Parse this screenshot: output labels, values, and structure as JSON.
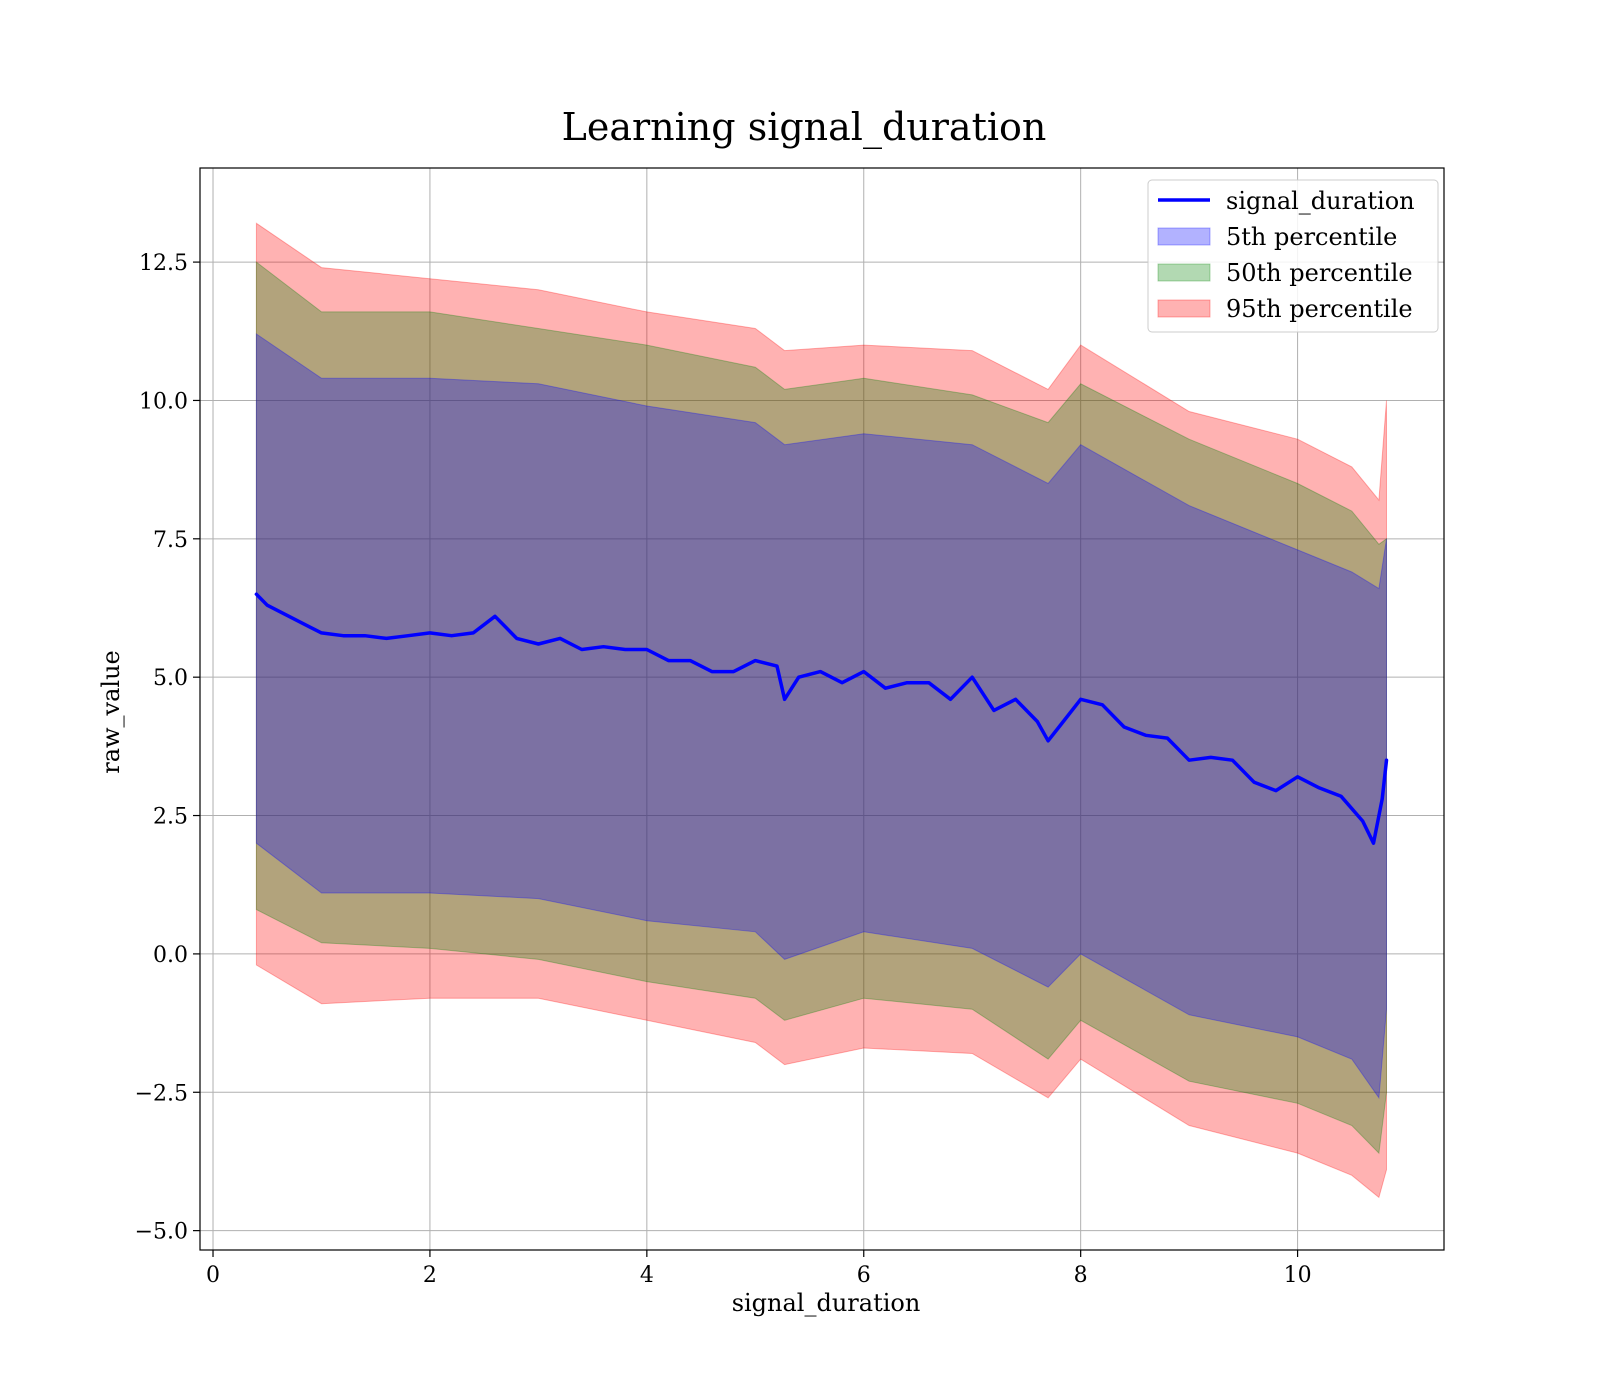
{
  "chart_data": {
    "type": "area",
    "title": "Learning signal_duration",
    "xlabel": "signal_duration",
    "ylabel": "raw_value",
    "xlim": [
      -0.12,
      11.35
    ],
    "ylim": [
      -5.35,
      14.2
    ],
    "grid": true,
    "legend_position": "top-right",
    "x_ticks": [
      0,
      2,
      4,
      6,
      8,
      10
    ],
    "x_tick_labels": [
      "0",
      "2",
      "4",
      "6",
      "8",
      "10"
    ],
    "y_ticks": [
      12.5,
      10.0,
      7.5,
      5.0,
      2.5,
      0.0,
      -2.5,
      -5.0
    ],
    "y_tick_labels": [
      "12.5",
      "10.0",
      "7.5",
      "5.0",
      "2.5",
      "0.0",
      "−2.5",
      "−5.0"
    ],
    "line": {
      "name": "signal_duration",
      "color": "#0000ff",
      "x": [
        0.4,
        0.5,
        0.7,
        0.9,
        1.0,
        1.2,
        1.4,
        1.6,
        1.8,
        2.0,
        2.2,
        2.4,
        2.6,
        2.8,
        3.0,
        3.2,
        3.4,
        3.6,
        3.8,
        4.0,
        4.2,
        4.4,
        4.6,
        4.8,
        5.0,
        5.2,
        5.27,
        5.4,
        5.6,
        5.8,
        6.0,
        6.2,
        6.4,
        6.6,
        6.8,
        7.0,
        7.2,
        7.4,
        7.6,
        7.7,
        7.8,
        8.0,
        8.2,
        8.4,
        8.6,
        8.8,
        9.0,
        9.2,
        9.4,
        9.6,
        9.8,
        10.0,
        10.2,
        10.4,
        10.6,
        10.7,
        10.78,
        10.82
      ],
      "y": [
        6.5,
        6.3,
        6.1,
        5.9,
        5.8,
        5.75,
        5.75,
        5.7,
        5.75,
        5.8,
        5.75,
        5.8,
        6.1,
        5.7,
        5.6,
        5.7,
        5.5,
        5.55,
        5.5,
        5.5,
        5.3,
        5.3,
        5.1,
        5.1,
        5.3,
        5.2,
        4.6,
        5.0,
        5.1,
        4.9,
        5.1,
        4.8,
        4.9,
        4.9,
        4.6,
        5.0,
        4.4,
        4.6,
        4.2,
        3.85,
        4.1,
        4.6,
        4.5,
        4.1,
        3.95,
        3.9,
        3.5,
        3.55,
        3.5,
        3.1,
        2.95,
        3.2,
        3.0,
        2.85,
        2.4,
        2.0,
        2.8,
        3.5
      ]
    },
    "bands": [
      {
        "name": "5th percentile",
        "color": "#0000ff",
        "x": [
          0.4,
          1.0,
          2.0,
          3.0,
          4.0,
          5.0,
          5.27,
          6.0,
          7.0,
          7.7,
          8.0,
          9.0,
          10.0,
          10.5,
          10.75,
          10.82
        ],
        "upper": [
          11.2,
          10.4,
          10.4,
          10.3,
          9.9,
          9.6,
          9.2,
          9.4,
          9.2,
          8.5,
          9.2,
          8.1,
          7.3,
          6.9,
          6.6,
          7.5
        ],
        "lower": [
          2.0,
          1.1,
          1.1,
          1.0,
          0.6,
          0.4,
          -0.1,
          0.4,
          0.1,
          -0.6,
          0.0,
          -1.1,
          -1.5,
          -1.9,
          -2.6,
          -1.0
        ]
      },
      {
        "name": "50th percentile",
        "color": "#008000",
        "x": [
          0.4,
          1.0,
          2.0,
          3.0,
          4.0,
          5.0,
          5.27,
          6.0,
          7.0,
          7.7,
          8.0,
          9.0,
          10.0,
          10.5,
          10.75,
          10.82
        ],
        "upper": [
          12.5,
          11.6,
          11.6,
          11.3,
          11.0,
          10.6,
          10.2,
          10.4,
          10.1,
          9.6,
          10.3,
          9.3,
          8.5,
          8.0,
          7.4,
          7.5
        ],
        "lower": [
          0.8,
          0.2,
          0.1,
          -0.1,
          -0.5,
          -0.8,
          -1.2,
          -0.8,
          -1.0,
          -1.9,
          -1.2,
          -2.3,
          -2.7,
          -3.1,
          -3.6,
          -2.5
        ]
      },
      {
        "name": "95th percentile",
        "color": "#ff0000",
        "x": [
          0.4,
          1.0,
          2.0,
          3.0,
          4.0,
          5.0,
          5.27,
          6.0,
          7.0,
          7.7,
          8.0,
          9.0,
          10.0,
          10.5,
          10.75,
          10.82
        ],
        "upper": [
          13.2,
          12.4,
          12.2,
          12.0,
          11.6,
          11.3,
          10.9,
          11.0,
          10.9,
          10.2,
          11.0,
          9.8,
          9.3,
          8.8,
          8.2,
          10.0
        ],
        "lower": [
          -0.2,
          -0.9,
          -0.8,
          -0.8,
          -1.2,
          -1.6,
          -2.0,
          -1.7,
          -1.8,
          -2.6,
          -1.9,
          -3.1,
          -3.6,
          -4.0,
          -4.4,
          -3.9
        ]
      }
    ]
  }
}
